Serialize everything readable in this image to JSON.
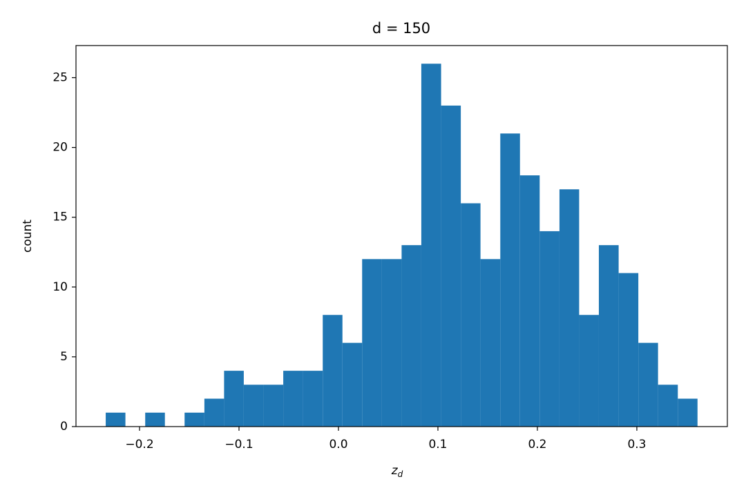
{
  "chart_data": {
    "type": "histogram",
    "title": "d = 150",
    "xlabel": "z",
    "xlabel_subscript": "d",
    "ylabel": "count",
    "bins": [
      -0.234,
      -0.2142,
      -0.1943,
      -0.1745,
      -0.1547,
      -0.1348,
      -0.115,
      -0.0952,
      -0.0753,
      -0.0555,
      -0.0357,
      -0.0158,
      0.004,
      0.0238,
      0.0437,
      0.0635,
      0.0833,
      0.1032,
      0.123,
      0.1428,
      0.1627,
      0.1825,
      0.2023,
      0.2222,
      0.242,
      0.2618,
      0.2817,
      0.3015,
      0.3213,
      0.3412,
      0.361
    ],
    "counts": [
      1,
      0,
      1,
      0,
      1,
      2,
      4,
      3,
      3,
      4,
      4,
      8,
      6,
      12,
      12,
      13,
      26,
      23,
      16,
      12,
      21,
      18,
      14,
      17,
      8,
      13,
      11,
      6,
      3,
      2
    ],
    "color": "#1f77b4",
    "xlim": [
      -0.2639,
      0.391
    ],
    "xticks": [
      {
        "value": -0.2,
        "label": "−0.2"
      },
      {
        "value": -0.1,
        "label": "−0.1"
      },
      {
        "value": 0,
        "label": "0.0"
      },
      0.1,
      0.2,
      0.3
    ],
    "ylim": [
      0,
      27.3
    ],
    "yticks": [
      0,
      5,
      10,
      15,
      20,
      25
    ]
  }
}
